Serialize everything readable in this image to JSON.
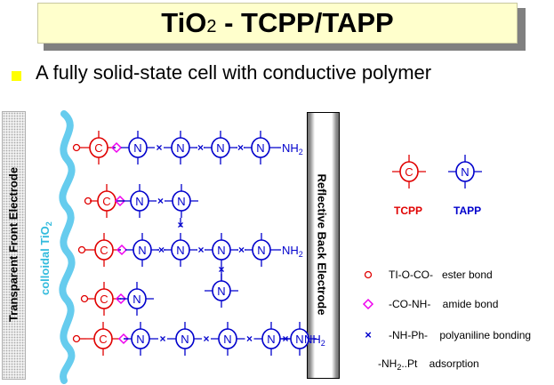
{
  "title": {
    "main_a": "TiO",
    "sub": "2",
    "main_b": " - TCPP/TAPP"
  },
  "subtitle": "A fully solid-state cell with conductive polymer",
  "left_electrode": "Transparent Front Electrode",
  "tio2_label": {
    "text": "colloidal TiO",
    "sub": "2"
  },
  "right_electrode": "Reflective Back Electrode",
  "symbols": {
    "c": "C",
    "n": "N",
    "cross": "×",
    "nh": "NH",
    "nh_sub": "2"
  },
  "key": {
    "tcpp": "TCPP",
    "tapp": "TAPP"
  },
  "legend": [
    {
      "text": "TI-O-CO-   ester bond"
    },
    {
      "text": "-CO-NH-    amide bond"
    },
    {
      "text": "-NH-Ph-    polyaniline bonding"
    },
    {
      "text_a": "-NH",
      "sub": "2",
      "text_b": "..Pt    adsorption"
    }
  ],
  "colors": {
    "tcpp": "#e00000",
    "tapp": "#0000cc",
    "amide": "#ee00ee",
    "wave": "#66ccee",
    "title_bg": "#ffffcc",
    "bullet": "#ffff00"
  }
}
